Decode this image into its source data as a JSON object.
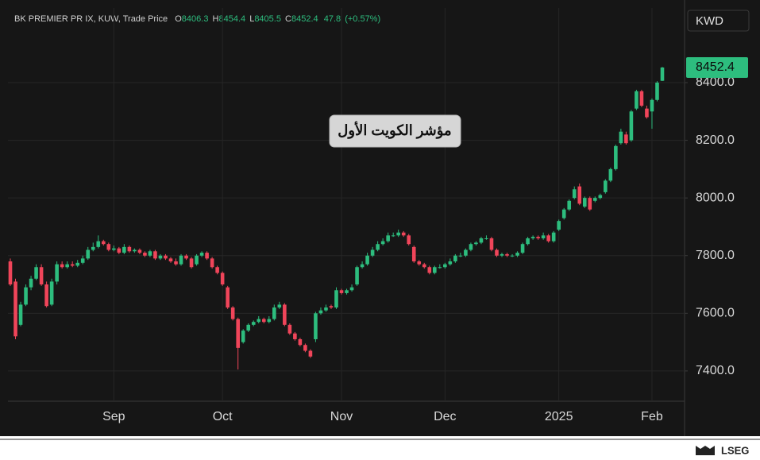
{
  "chart_data": {
    "type": "candlestick",
    "title": "BK PREMIER PR IX, KUW, Trade Price",
    "currency": "KWD",
    "annotation": "مؤشر الكويت الأول",
    "brand": "LSEG",
    "ohlc_letters": [
      "O",
      "H",
      "L",
      "C"
    ],
    "change": 47.8,
    "change_percent": {
      "value": 0.57,
      "label": "(+0.57%)"
    },
    "up_color": "#2dbd7e",
    "down_color": "#f0455a",
    "grid": true,
    "ylim": [
      7295,
      8659
    ],
    "yticks": [
      {
        "value": 7400,
        "label": "7400.0"
      },
      {
        "value": 7600,
        "label": "7600.0"
      },
      {
        "value": 7800,
        "label": "7800.0"
      },
      {
        "value": 8000,
        "label": "8000.0"
      },
      {
        "value": 8200,
        "label": "8200.0"
      },
      {
        "value": 8400,
        "label": "8400.0"
      }
    ],
    "categories": [
      null,
      null,
      null,
      null,
      null,
      null,
      null,
      null,
      null,
      null,
      null,
      null,
      null,
      null,
      null,
      null,
      null,
      null,
      null,
      null,
      "Sep",
      null,
      null,
      null,
      null,
      null,
      null,
      null,
      null,
      null,
      null,
      null,
      null,
      null,
      null,
      null,
      null,
      null,
      null,
      null,
      null,
      "Oct",
      null,
      null,
      null,
      null,
      null,
      null,
      null,
      null,
      null,
      null,
      null,
      null,
      null,
      null,
      null,
      null,
      null,
      null,
      null,
      null,
      null,
      null,
      "Nov",
      null,
      null,
      null,
      null,
      null,
      null,
      null,
      null,
      null,
      null,
      null,
      null,
      null,
      null,
      null,
      null,
      null,
      null,
      null,
      "Dec",
      null,
      null,
      null,
      null,
      null,
      null,
      null,
      null,
      null,
      null,
      null,
      null,
      null,
      null,
      null,
      null,
      null,
      null,
      null,
      null,
      null,
      "2025",
      null,
      null,
      null,
      null,
      null,
      null,
      null,
      null,
      null,
      null,
      null,
      null,
      null,
      null,
      null,
      null,
      null,
      "Feb",
      null,
      null
    ],
    "open": [
      7780,
      7710,
      7560,
      7630,
      7690,
      7720,
      7760,
      7700,
      7630,
      7710,
      7770,
      7760,
      7770,
      7765,
      7775,
      7790,
      7820,
      7830,
      7850,
      7840,
      7820,
      7825,
      7810,
      7830,
      7815,
      7820,
      7810,
      7800,
      7815,
      7790,
      7800,
      7790,
      7780,
      7770,
      7800,
      7790,
      7770,
      7800,
      7810,
      7790,
      7760,
      7740,
      7690,
      7620,
      7580,
      7500,
      7540,
      7560,
      7570,
      7580,
      7570,
      7580,
      7620,
      7630,
      7560,
      7530,
      7510,
      7490,
      7470,
      7510,
      7600,
      7610,
      7625,
      7620,
      7680,
      7670,
      7680,
      7700,
      7760,
      7770,
      7800,
      7820,
      7840,
      7850,
      7870,
      7870,
      7880,
      7870,
      7830,
      7780,
      7770,
      7760,
      7740,
      7760,
      7760,
      7770,
      7780,
      7800,
      7800,
      7820,
      7840,
      7845,
      7860,
      7860,
      7820,
      7800,
      7805,
      7800,
      7800,
      7810,
      7840,
      7860,
      7865,
      7860,
      7870,
      7850,
      7890,
      7930,
      7960,
      8000,
      8040,
      7970,
      8000,
      7990,
      8000,
      8020,
      8060,
      8100,
      8190,
      8220,
      8200,
      8310,
      8370,
      8310,
      8300,
      8340,
      8406.3
    ],
    "high": [
      7790,
      7720,
      7640,
      7700,
      7730,
      7770,
      7770,
      7710,
      7720,
      7780,
      7780,
      7780,
      7780,
      7785,
      7800,
      7830,
      7845,
      7870,
      7855,
      7845,
      7835,
      7830,
      7840,
      7835,
      7825,
      7825,
      7815,
      7820,
      7820,
      7805,
      7805,
      7795,
      7790,
      7805,
      7805,
      7795,
      7805,
      7815,
      7815,
      7795,
      7765,
      7745,
      7695,
      7625,
      7585,
      7545,
      7565,
      7575,
      7590,
      7585,
      7590,
      7630,
      7640,
      7635,
      7565,
      7535,
      7515,
      7495,
      7475,
      7605,
      7620,
      7630,
      7630,
      7690,
      7685,
      7685,
      7700,
      7765,
      7780,
      7810,
      7830,
      7850,
      7860,
      7880,
      7880,
      7890,
      7885,
      7875,
      7835,
      7785,
      7775,
      7765,
      7765,
      7770,
      7775,
      7790,
      7805,
      7810,
      7825,
      7845,
      7850,
      7865,
      7870,
      7865,
      7825,
      7810,
      7810,
      7805,
      7815,
      7845,
      7865,
      7870,
      7870,
      7880,
      7875,
      7885,
      7925,
      7965,
      7995,
      8040,
      8050,
      8005,
      8005,
      8005,
      8015,
      8065,
      8105,
      8185,
      8240,
      8230,
      8305,
      8375,
      8375,
      8320,
      8345,
      8405,
      8454.4
    ],
    "low": [
      7695,
      7510,
      7555,
      7625,
      7680,
      7715,
      7695,
      7620,
      7625,
      7700,
      7755,
      7755,
      7760,
      7760,
      7770,
      7785,
      7815,
      7825,
      7835,
      7815,
      7815,
      7805,
      7805,
      7810,
      7810,
      7805,
      7795,
      7795,
      7785,
      7785,
      7785,
      7775,
      7765,
      7765,
      7785,
      7755,
      7765,
      7795,
      7785,
      7755,
      7735,
      7695,
      7615,
      7575,
      7405,
      7495,
      7535,
      7555,
      7565,
      7565,
      7565,
      7575,
      7615,
      7555,
      7525,
      7505,
      7485,
      7465,
      7445,
      7500,
      7595,
      7605,
      7615,
      7615,
      7665,
      7665,
      7675,
      7695,
      7755,
      7765,
      7795,
      7815,
      7835,
      7845,
      7865,
      7865,
      7865,
      7835,
      7775,
      7765,
      7755,
      7735,
      7735,
      7755,
      7755,
      7765,
      7775,
      7795,
      7795,
      7815,
      7835,
      7840,
      7855,
      7815,
      7795,
      7795,
      7795,
      7795,
      7795,
      7805,
      7835,
      7855,
      7855,
      7855,
      7845,
      7845,
      7885,
      7925,
      7955,
      7995,
      7975,
      7965,
      7955,
      7985,
      7995,
      8015,
      8055,
      8095,
      8185,
      8185,
      8195,
      8305,
      8315,
      8275,
      8240,
      8335,
      8405.5
    ],
    "close": [
      7700,
      7520,
      7630,
      7690,
      7720,
      7760,
      7700,
      7625,
      7710,
      7770,
      7760,
      7770,
      7765,
      7775,
      7790,
      7820,
      7830,
      7850,
      7840,
      7820,
      7825,
      7810,
      7830,
      7815,
      7820,
      7810,
      7800,
      7815,
      7790,
      7800,
      7790,
      7780,
      7770,
      7800,
      7790,
      7760,
      7800,
      7810,
      7790,
      7760,
      7740,
      7700,
      7620,
      7580,
      7480,
      7540,
      7560,
      7570,
      7580,
      7570,
      7580,
      7620,
      7630,
      7560,
      7530,
      7510,
      7490,
      7470,
      7450,
      7600,
      7610,
      7620,
      7620,
      7680,
      7670,
      7680,
      7690,
      7760,
      7770,
      7800,
      7820,
      7840,
      7850,
      7870,
      7870,
      7880,
      7870,
      7840,
      7780,
      7770,
      7760,
      7740,
      7760,
      7760,
      7770,
      7780,
      7800,
      7800,
      7820,
      7840,
      7845,
      7860,
      7860,
      7820,
      7800,
      7805,
      7800,
      7800,
      7810,
      7840,
      7860,
      7865,
      7860,
      7870,
      7850,
      7880,
      7920,
      7960,
      7990,
      8030,
      7980,
      8000,
      7960,
      8000,
      8010,
      8060,
      8100,
      8180,
      8230,
      8190,
      8300,
      8370,
      8320,
      8280,
      8340,
      8400,
      8452.4
    ]
  }
}
